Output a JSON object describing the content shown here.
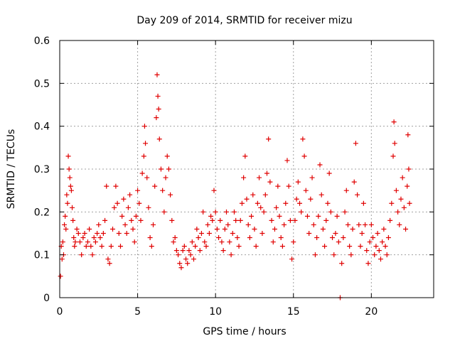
{
  "chart_data": {
    "type": "scatter",
    "title": "Day 209 of 2014, SRMTID for receiver mizu",
    "xlabel": "GPS time / hours",
    "ylabel": "SRMTID / TECUs",
    "xlim": [
      0,
      24
    ],
    "ylim": [
      0,
      0.6
    ],
    "xticks": [
      0,
      5,
      10,
      15,
      20
    ],
    "xtick_labels": [
      "0",
      "5",
      "10",
      "15",
      "20"
    ],
    "yticks": [
      0,
      0.1,
      0.2,
      0.3,
      0.4,
      0.5,
      0.6
    ],
    "ytick_labels": [
      "0",
      "0.1",
      "0.2",
      "0.3",
      "0.4",
      "0.5",
      "0.6"
    ],
    "grid": true,
    "marker": "+",
    "marker_color": "#e00000",
    "series": [
      {
        "name": "SRMTID",
        "points": [
          [
            0.05,
            0.05
          ],
          [
            0.1,
            0.12
          ],
          [
            0.15,
            0.09
          ],
          [
            0.2,
            0.13
          ],
          [
            0.25,
            0.1
          ],
          [
            0.3,
            0.17
          ],
          [
            0.35,
            0.19
          ],
          [
            0.4,
            0.16
          ],
          [
            0.45,
            0.24
          ],
          [
            0.5,
            0.22
          ],
          [
            0.55,
            0.33
          ],
          [
            0.6,
            0.3
          ],
          [
            0.65,
            0.28
          ],
          [
            0.7,
            0.26
          ],
          [
            0.75,
            0.25
          ],
          [
            0.8,
            0.21
          ],
          [
            0.85,
            0.18
          ],
          [
            0.9,
            0.14
          ],
          [
            0.95,
            0.12
          ],
          [
            1.0,
            0.13
          ],
          [
            1.1,
            0.16
          ],
          [
            1.2,
            0.15
          ],
          [
            1.3,
            0.13
          ],
          [
            1.4,
            0.1
          ],
          [
            1.5,
            0.14
          ],
          [
            1.6,
            0.15
          ],
          [
            1.7,
            0.12
          ],
          [
            1.8,
            0.13
          ],
          [
            1.9,
            0.16
          ],
          [
            2.0,
            0.12
          ],
          [
            2.1,
            0.1
          ],
          [
            2.2,
            0.14
          ],
          [
            2.3,
            0.13
          ],
          [
            2.4,
            0.15
          ],
          [
            2.5,
            0.17
          ],
          [
            2.6,
            0.14
          ],
          [
            2.7,
            0.12
          ],
          [
            2.8,
            0.15
          ],
          [
            2.9,
            0.18
          ],
          [
            3.0,
            0.26
          ],
          [
            3.1,
            0.09
          ],
          [
            3.2,
            0.08
          ],
          [
            3.3,
            0.12
          ],
          [
            3.4,
            0.16
          ],
          [
            3.5,
            0.21
          ],
          [
            3.6,
            0.26
          ],
          [
            3.7,
            0.22
          ],
          [
            3.8,
            0.15
          ],
          [
            3.9,
            0.12
          ],
          [
            4.0,
            0.19
          ],
          [
            4.1,
            0.23
          ],
          [
            4.2,
            0.17
          ],
          [
            4.3,
            0.15
          ],
          [
            4.4,
            0.21
          ],
          [
            4.5,
            0.24
          ],
          [
            4.6,
            0.18
          ],
          [
            4.7,
            0.16
          ],
          [
            4.8,
            0.13
          ],
          [
            4.9,
            0.19
          ],
          [
            5.0,
            0.25
          ],
          [
            5.1,
            0.22
          ],
          [
            5.2,
            0.18
          ],
          [
            5.3,
            0.29
          ],
          [
            5.4,
            0.33
          ],
          [
            5.45,
            0.4
          ],
          [
            5.5,
            0.36
          ],
          [
            5.6,
            0.28
          ],
          [
            5.7,
            0.21
          ],
          [
            5.8,
            0.14
          ],
          [
            5.9,
            0.12
          ],
          [
            6.0,
            0.17
          ],
          [
            6.1,
            0.26
          ],
          [
            6.2,
            0.42
          ],
          [
            6.25,
            0.52
          ],
          [
            6.3,
            0.47
          ],
          [
            6.35,
            0.44
          ],
          [
            6.4,
            0.37
          ],
          [
            6.5,
            0.3
          ],
          [
            6.6,
            0.25
          ],
          [
            6.7,
            0.2
          ],
          [
            6.8,
            0.28
          ],
          [
            6.9,
            0.33
          ],
          [
            7.0,
            0.3
          ],
          [
            7.1,
            0.24
          ],
          [
            7.2,
            0.18
          ],
          [
            7.3,
            0.13
          ],
          [
            7.4,
            0.14
          ],
          [
            7.5,
            0.11
          ],
          [
            7.6,
            0.1
          ],
          [
            7.7,
            0.08
          ],
          [
            7.8,
            0.07
          ],
          [
            7.9,
            0.11
          ],
          [
            8.0,
            0.12
          ],
          [
            8.1,
            0.09
          ],
          [
            8.2,
            0.08
          ],
          [
            8.3,
            0.11
          ],
          [
            8.4,
            0.1
          ],
          [
            8.5,
            0.13
          ],
          [
            8.6,
            0.09
          ],
          [
            8.7,
            0.12
          ],
          [
            8.8,
            0.16
          ],
          [
            8.9,
            0.14
          ],
          [
            9.0,
            0.11
          ],
          [
            9.1,
            0.15
          ],
          [
            9.2,
            0.2
          ],
          [
            9.3,
            0.13
          ],
          [
            9.4,
            0.12
          ],
          [
            9.5,
            0.17
          ],
          [
            9.6,
            0.15
          ],
          [
            9.7,
            0.19
          ],
          [
            9.8,
            0.18
          ],
          [
            9.9,
            0.25
          ],
          [
            10.0,
            0.2
          ],
          [
            10.1,
            0.16
          ],
          [
            10.2,
            0.14
          ],
          [
            10.3,
            0.18
          ],
          [
            10.4,
            0.13
          ],
          [
            10.5,
            0.11
          ],
          [
            10.6,
            0.16
          ],
          [
            10.7,
            0.2
          ],
          [
            10.8,
            0.17
          ],
          [
            10.9,
            0.13
          ],
          [
            11.0,
            0.1
          ],
          [
            11.1,
            0.15
          ],
          [
            11.2,
            0.2
          ],
          [
            11.3,
            0.18
          ],
          [
            11.4,
            0.14
          ],
          [
            11.5,
            0.12
          ],
          [
            11.6,
            0.18
          ],
          [
            11.7,
            0.22
          ],
          [
            11.8,
            0.28
          ],
          [
            11.9,
            0.33
          ],
          [
            12.0,
            0.23
          ],
          [
            12.1,
            0.17
          ],
          [
            12.2,
            0.14
          ],
          [
            12.3,
            0.19
          ],
          [
            12.4,
            0.24
          ],
          [
            12.5,
            0.16
          ],
          [
            12.6,
            0.12
          ],
          [
            12.7,
            0.22
          ],
          [
            12.8,
            0.28
          ],
          [
            12.9,
            0.21
          ],
          [
            13.0,
            0.15
          ],
          [
            13.1,
            0.2
          ],
          [
            13.2,
            0.24
          ],
          [
            13.3,
            0.29
          ],
          [
            13.4,
            0.37
          ],
          [
            13.5,
            0.27
          ],
          [
            13.6,
            0.18
          ],
          [
            13.7,
            0.13
          ],
          [
            13.8,
            0.16
          ],
          [
            13.9,
            0.21
          ],
          [
            14.0,
            0.26
          ],
          [
            14.1,
            0.19
          ],
          [
            14.2,
            0.14
          ],
          [
            14.3,
            0.12
          ],
          [
            14.4,
            0.17
          ],
          [
            14.5,
            0.22
          ],
          [
            14.6,
            0.32
          ],
          [
            14.7,
            0.26
          ],
          [
            14.8,
            0.18
          ],
          [
            14.9,
            0.09
          ],
          [
            15.0,
            0.13
          ],
          [
            15.1,
            0.18
          ],
          [
            15.2,
            0.23
          ],
          [
            15.3,
            0.27
          ],
          [
            15.4,
            0.22
          ],
          [
            15.5,
            0.2
          ],
          [
            15.6,
            0.37
          ],
          [
            15.7,
            0.33
          ],
          [
            15.8,
            0.25
          ],
          [
            15.9,
            0.19
          ],
          [
            16.0,
            0.15
          ],
          [
            16.1,
            0.23
          ],
          [
            16.2,
            0.28
          ],
          [
            16.3,
            0.17
          ],
          [
            16.4,
            0.1
          ],
          [
            16.5,
            0.14
          ],
          [
            16.6,
            0.19
          ],
          [
            16.7,
            0.31
          ],
          [
            16.8,
            0.24
          ],
          [
            16.9,
            0.16
          ],
          [
            17.0,
            0.12
          ],
          [
            17.1,
            0.18
          ],
          [
            17.2,
            0.22
          ],
          [
            17.3,
            0.29
          ],
          [
            17.4,
            0.2
          ],
          [
            17.5,
            0.14
          ],
          [
            17.6,
            0.1
          ],
          [
            17.7,
            0.15
          ],
          [
            17.8,
            0.19
          ],
          [
            17.9,
            0.13
          ],
          [
            18.0,
            0.0
          ],
          [
            18.1,
            0.08
          ],
          [
            18.2,
            0.14
          ],
          [
            18.3,
            0.2
          ],
          [
            18.4,
            0.25
          ],
          [
            18.5,
            0.17
          ],
          [
            18.6,
            0.12
          ],
          [
            18.7,
            0.1
          ],
          [
            18.8,
            0.16
          ],
          [
            18.9,
            0.27
          ],
          [
            19.0,
            0.36
          ],
          [
            19.1,
            0.24
          ],
          [
            19.2,
            0.17
          ],
          [
            19.3,
            0.12
          ],
          [
            19.4,
            0.15
          ],
          [
            19.5,
            0.22
          ],
          [
            19.6,
            0.17
          ],
          [
            19.7,
            0.11
          ],
          [
            19.8,
            0.08
          ],
          [
            19.9,
            0.13
          ],
          [
            20.0,
            0.17
          ],
          [
            20.1,
            0.14
          ],
          [
            20.2,
            0.1
          ],
          [
            20.3,
            0.12
          ],
          [
            20.4,
            0.15
          ],
          [
            20.5,
            0.11
          ],
          [
            20.6,
            0.09
          ],
          [
            20.7,
            0.13
          ],
          [
            20.8,
            0.16
          ],
          [
            20.9,
            0.12
          ],
          [
            21.0,
            0.1
          ],
          [
            21.1,
            0.14
          ],
          [
            21.2,
            0.18
          ],
          [
            21.3,
            0.22
          ],
          [
            21.4,
            0.33
          ],
          [
            21.45,
            0.41
          ],
          [
            21.5,
            0.36
          ],
          [
            21.6,
            0.25
          ],
          [
            21.7,
            0.2
          ],
          [
            21.8,
            0.17
          ],
          [
            21.9,
            0.23
          ],
          [
            22.0,
            0.28
          ],
          [
            22.1,
            0.21
          ],
          [
            22.2,
            0.16
          ],
          [
            22.3,
            0.26
          ],
          [
            22.35,
            0.38
          ],
          [
            22.4,
            0.3
          ],
          [
            22.45,
            0.22
          ]
        ]
      }
    ]
  }
}
